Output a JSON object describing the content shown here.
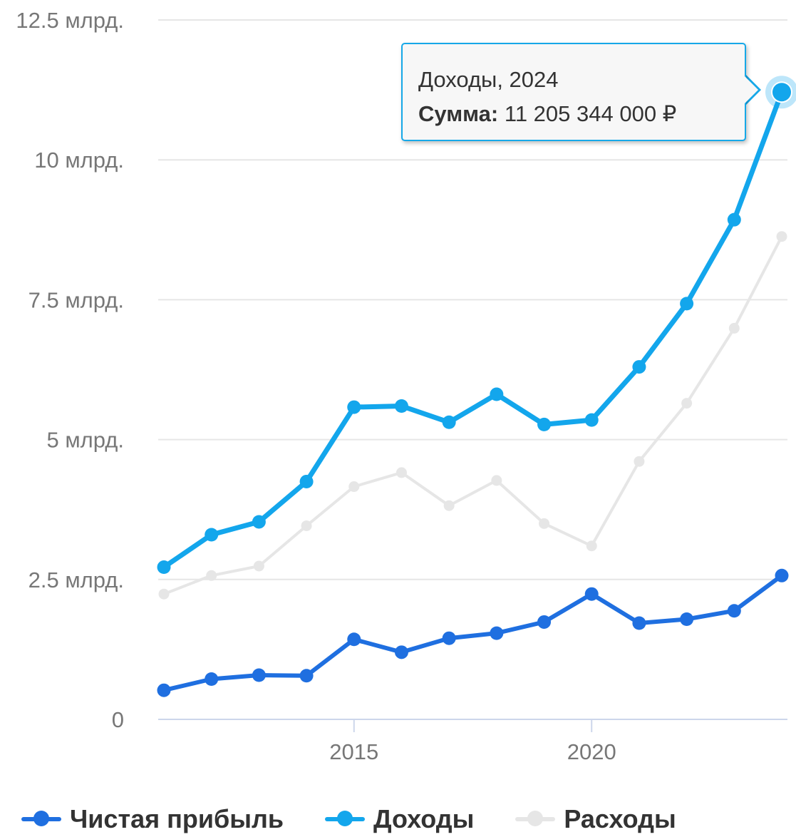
{
  "chart_data": {
    "type": "line",
    "x": [
      2011,
      2012,
      2013,
      2014,
      2015,
      2016,
      2017,
      2018,
      2019,
      2020,
      2021,
      2022,
      2023,
      2024
    ],
    "xticks": [
      2015,
      2020
    ],
    "xlim": [
      2011,
      2024
    ],
    "ylim": [
      0,
      12.5
    ],
    "yticks": [
      0,
      2.5,
      5,
      7.5,
      10,
      12.5
    ],
    "ytick_labels": [
      "0",
      "2.5 млрд.",
      "5 млрд.",
      "7.5 млрд.",
      "10 млрд.",
      "12.5 млрд."
    ],
    "grid": true,
    "legend_position": "bottom-left",
    "series": [
      {
        "name": "Расходы",
        "color": "#e6e6e6",
        "values": [
          2.24,
          2.57,
          2.74,
          3.46,
          4.16,
          4.41,
          3.82,
          4.27,
          3.5,
          3.1,
          4.61,
          5.65,
          6.99,
          8.63
        ]
      },
      {
        "name": "Доходы",
        "color": "#13a6ec",
        "values": [
          2.72,
          3.3,
          3.53,
          4.25,
          5.58,
          5.6,
          5.31,
          5.81,
          5.27,
          5.35,
          6.3,
          7.43,
          8.93,
          11.21
        ]
      },
      {
        "name": "Чистая прибыль",
        "color": "#1f6fe0",
        "values": [
          0.52,
          0.72,
          0.79,
          0.78,
          1.43,
          1.2,
          1.45,
          1.54,
          1.74,
          2.24,
          1.72,
          1.79,
          1.94,
          2.57
        ]
      }
    ],
    "tooltip": {
      "title": "Доходы, 2024",
      "label": "Сумма:",
      "value": "11 205 344 000 ₽",
      "series_index": 1,
      "point_index": 13
    }
  },
  "legend": {
    "items": [
      {
        "label": "Чистая прибыль",
        "color": "#1f6fe0"
      },
      {
        "label": "Доходы",
        "color": "#13a6ec"
      },
      {
        "label": "Расходы",
        "color": "#e6e6e6"
      }
    ]
  }
}
